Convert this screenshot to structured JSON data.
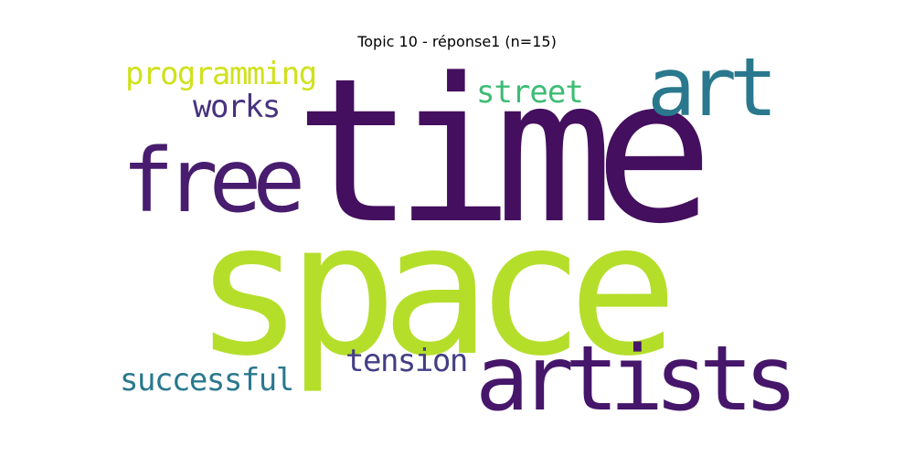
{
  "title": "Topic 10 - réponse1 (n=15)",
  "words": [
    {
      "text": "time",
      "color": "#440f5e"
    },
    {
      "text": "space",
      "color": "#b5de2b"
    },
    {
      "text": "artists",
      "color": "#46166a"
    },
    {
      "text": "art",
      "color": "#2a788e"
    },
    {
      "text": "free",
      "color": "#481c6e"
    },
    {
      "text": "programming",
      "color": "#d0e11c"
    },
    {
      "text": "street",
      "color": "#3dbc74"
    },
    {
      "text": "works",
      "color": "#46327e"
    },
    {
      "text": "tension",
      "color": "#433e85"
    },
    {
      "text": "successful",
      "color": "#2a788e"
    }
  ]
}
